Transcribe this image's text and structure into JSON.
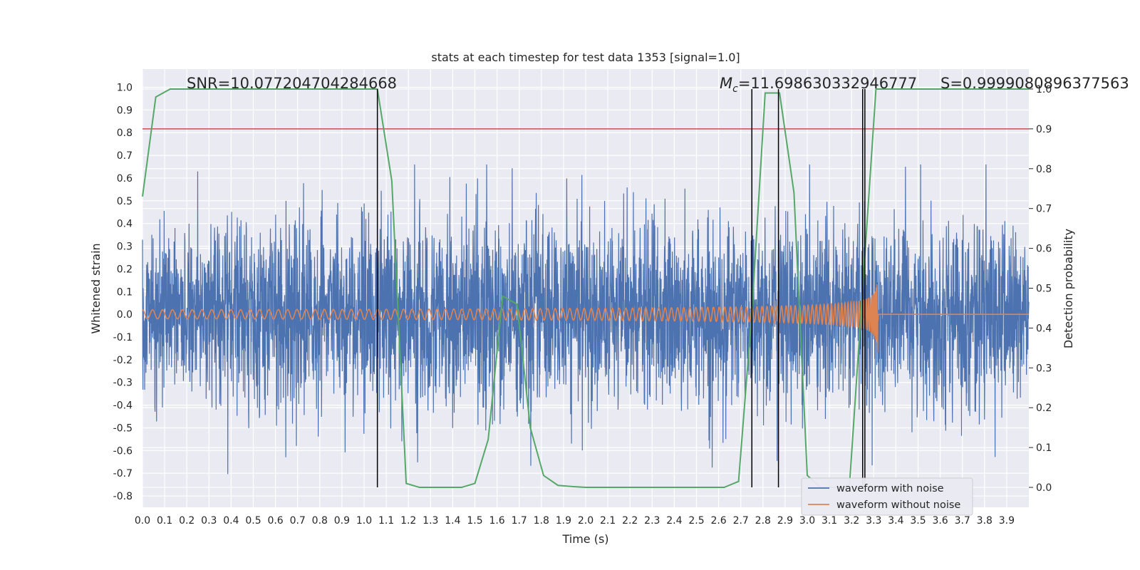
{
  "chart_data": {
    "type": "line",
    "title": "stats at each timestep for test data 1353 [signal=1.0]",
    "xlabel": "Time (s)",
    "ylabel": "Whitened strain",
    "ylabel_right": "Detection probability",
    "xlim": [
      0.0,
      4.0
    ],
    "ylim": [
      -0.85,
      1.08
    ],
    "ylim_right": [
      -0.05,
      1.05
    ],
    "x_ticks": [
      "0.0",
      "0.1",
      "0.2",
      "0.3",
      "0.4",
      "0.5",
      "0.6",
      "0.7",
      "0.8",
      "0.9",
      "1.0",
      "1.1",
      "1.2",
      "1.3",
      "1.4",
      "1.5",
      "1.6",
      "1.7",
      "1.8",
      "1.9",
      "2.0",
      "2.1",
      "2.2",
      "2.3",
      "2.4",
      "2.5",
      "2.6",
      "2.7",
      "2.8",
      "2.9",
      "3.0",
      "3.1",
      "3.2",
      "3.3",
      "3.4",
      "3.5",
      "3.6",
      "3.7",
      "3.8",
      "3.9"
    ],
    "y_ticks": [
      "-0.8",
      "-0.7",
      "-0.6",
      "-0.5",
      "-0.4",
      "-0.3",
      "-0.2",
      "-0.1",
      "0.0",
      "0.1",
      "0.2",
      "0.3",
      "0.4",
      "0.5",
      "0.6",
      "0.7",
      "0.8",
      "0.9",
      "1.0"
    ],
    "y_ticks_right": [
      "0.0",
      "0.1",
      "0.2",
      "0.3",
      "0.4",
      "0.5",
      "0.6",
      "0.7",
      "0.8",
      "0.9",
      "1.0"
    ],
    "annotations": {
      "snr": "SNR=10.077204704284668",
      "mc_symbol": "M",
      "mc_sub": "c",
      "mc_value": "=11.698630332946777",
      "s": "S=0.9999080896377563"
    },
    "noise_series": {
      "name": "waveform with noise",
      "color": "#4c72b0",
      "t_start": 0.0,
      "t_end": 4.0,
      "samples": 4096,
      "std": 0.2,
      "spike_max": 0.66,
      "spike_min": -0.76
    },
    "signal_series": {
      "name": "waveform without noise",
      "color": "#dd8452",
      "t_merger": 3.32,
      "f0": 22,
      "amp_start": 0.02,
      "amp_peak": 0.33
    },
    "probability_series": {
      "name": "detection probability",
      "color": "#55a868",
      "x": [
        0.0,
        0.06,
        0.125,
        0.19,
        0.25,
        0.31,
        0.375,
        0.44,
        0.5,
        0.56,
        0.625,
        0.69,
        0.75,
        0.81,
        0.875,
        0.94,
        1.0,
        1.06,
        1.125,
        1.19,
        1.25,
        1.31,
        1.375,
        1.44,
        1.5,
        1.56,
        1.625,
        1.69,
        1.75,
        1.81,
        1.875,
        1.94,
        2.0,
        2.06,
        2.125,
        2.19,
        2.25,
        2.31,
        2.375,
        2.44,
        2.5,
        2.56,
        2.625,
        2.69,
        2.75,
        2.81,
        2.875,
        2.94,
        3.0,
        3.06,
        3.125,
        3.19,
        3.25,
        3.31,
        3.375,
        3.44,
        3.5,
        3.56,
        3.625,
        3.69,
        3.75,
        3.81,
        3.875,
        3.94,
        4.0
      ],
      "y": [
        0.73,
        0.98,
        1.0,
        1.0,
        1.0,
        1.0,
        1.0,
        1.0,
        1.0,
        1.0,
        1.0,
        1.0,
        1.0,
        1.0,
        1.0,
        1.0,
        1.0,
        1.0,
        0.77,
        0.01,
        0.0,
        0.0,
        0.0,
        0.0,
        0.01,
        0.12,
        0.48,
        0.46,
        0.15,
        0.03,
        0.005,
        0.002,
        0.0,
        0.0,
        0.0,
        0.0,
        0.0,
        0.0,
        0.0,
        0.0,
        0.0,
        0.0,
        0.0,
        0.015,
        0.44,
        0.99,
        0.99,
        0.74,
        0.03,
        0.0,
        0.0,
        0.0,
        0.5,
        1.0,
        1.0,
        1.0,
        1.0,
        1.0,
        1.0,
        1.0,
        1.0,
        1.0,
        1.0,
        1.0,
        1.0
      ]
    },
    "threshold": {
      "value": 0.9,
      "color": "#c44e52"
    },
    "vlines": [
      1.06,
      2.75,
      2.87,
      3.25,
      3.26
    ],
    "vline_color": "#000000",
    "legend": {
      "position": "lower-right",
      "entries": [
        {
          "label": "waveform with noise",
          "color": "#4c72b0"
        },
        {
          "label": "waveform without noise",
          "color": "#dd8452"
        }
      ]
    },
    "grid": true,
    "background": "#eaeaf2"
  }
}
